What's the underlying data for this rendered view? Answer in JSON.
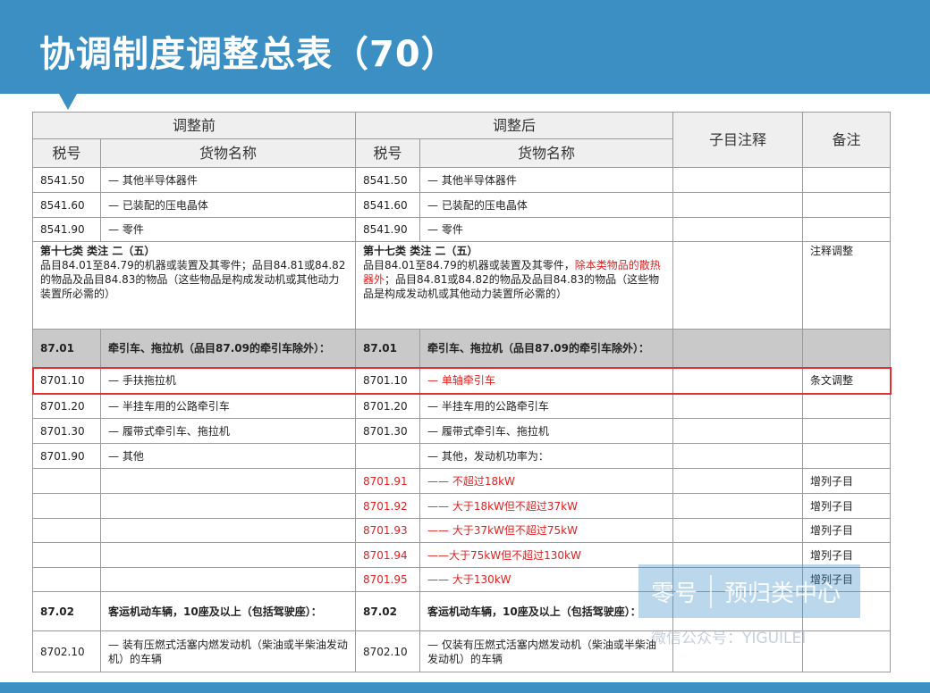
{
  "header": {
    "title": "协调制度调整总表（70）"
  },
  "table": {
    "group_headers": [
      "调整前",
      "调整后",
      "子目注释",
      "备注"
    ],
    "sub_headers": [
      "税号",
      "货物名称",
      "税号",
      "货物名称"
    ],
    "rows": [
      {
        "cells": [
          "8541.50",
          "— 其他半导体器件",
          "8541.50",
          "— 其他半导体器件",
          null,
          null
        ]
      },
      {
        "cells": [
          "8541.60",
          "— 已装配的压电晶体",
          "8541.60",
          "— 已装配的压电晶体",
          null,
          null
        ]
      },
      {
        "cells": [
          "8541.90",
          "— 零件",
          "8541.90",
          "— 零件",
          null,
          null
        ]
      },
      {
        "cells": [
          {
            "title": "第十七类 类注 二（五）",
            "segments": [
              {
                "text": "品目84.01至84.79的机器或装置及其零件；品目84.81或84.82的物品及品目84.83的物品（这些物品是构成发动机或其他动力装置所必需的）"
              }
            ]
          },
          null,
          {
            "title": "第十七类 类注 二（五）",
            "segments": [
              {
                "text": "品目84.01至84.79的机器或装置及其零件，"
              },
              {
                "text": "除本类物品的散热器外",
                "color": "#e02020"
              },
              {
                "text": "；品目84.81或84.82的物品及品目84.83的物品（这些物品是构成发动机或其他动力装置所必需的）"
              }
            ]
          },
          null,
          null,
          "注释调整"
        ],
        "span": true
      },
      {
        "cells": [
          "87.01",
          "牵引车、拖拉机（品目87.09的牵引车除外）：",
          "87.01",
          "牵引车、拖拉机（品目87.09的牵引车除外）：",
          null,
          null
        ],
        "bold": true,
        "shade": true
      },
      {
        "cells": [
          "8701.10",
          "— 手扶拖拉机",
          "8701.10",
          {
            "text": "— 单轴牵引车",
            "color": "#e02020"
          },
          null,
          "条文调整"
        ],
        "highlight": true
      },
      {
        "cells": [
          "8701.20",
          "— 半挂车用的公路牵引车",
          "8701.20",
          "— 半挂车用的公路牵引车",
          null,
          null
        ]
      },
      {
        "cells": [
          "8701.30",
          "— 履带式牵引车、拖拉机",
          "8701.30",
          "— 履带式牵引车、拖拉机",
          null,
          null
        ]
      },
      {
        "cells": [
          "8701.90",
          "— 其他",
          null,
          "— 其他，发动机功率为：",
          null,
          null
        ]
      },
      {
        "cells": [
          null,
          null,
          {
            "text": "8701.91",
            "color": "#e02020"
          },
          {
            "text": "—— 不超过18kW",
            "color": "#e02020"
          },
          null,
          "增列子目"
        ]
      },
      {
        "cells": [
          null,
          null,
          {
            "text": "8701.92",
            "color": "#e02020"
          },
          {
            "text": "—— 大于18kW但不超过37kW",
            "color": "#e02020"
          },
          null,
          "增列子目"
        ]
      },
      {
        "cells": [
          null,
          null,
          {
            "text": "8701.93",
            "color": "#e02020"
          },
          {
            "text": "—— 大于37kW但不超过75kW",
            "color": "#e02020"
          },
          null,
          "增列子目"
        ]
      },
      {
        "cells": [
          null,
          null,
          {
            "text": "8701.94",
            "color": "#e02020"
          },
          {
            "text": "——大于75kW但不超过130kW",
            "color": "#e02020"
          },
          null,
          "增列子目"
        ]
      },
      {
        "cells": [
          null,
          null,
          {
            "text": "8701.95",
            "color": "#e02020"
          },
          {
            "text": "—— 大于130kW",
            "color": "#e02020"
          },
          null,
          "增列子目"
        ]
      },
      {
        "cells": [
          "87.02",
          "客运机动车辆，10座及以上（包括驾驶座）：",
          "87.02",
          "客运机动车辆，10座及以上（包括驾驶座）：",
          null,
          null
        ],
        "bold": true
      },
      {
        "cells": [
          "8702.10",
          "— 装有压燃式活塞内燃发动机（柴油或半柴油发动机）的车辆",
          "8702.10",
          "— 仅装有压燃式活塞内燃发动机（柴油或半柴油发动机）的车辆",
          null,
          null
        ]
      }
    ]
  },
  "watermark": {
    "brand": [
      "零号",
      "预归类中心"
    ],
    "account": "微信公众号：YIGUILEI"
  }
}
